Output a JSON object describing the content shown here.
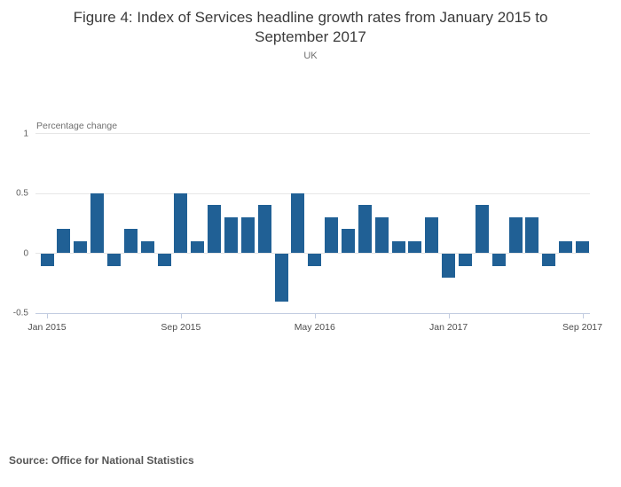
{
  "footer": {
    "source": "Source: Office for National Statistics"
  },
  "chart_data": {
    "type": "bar",
    "title": "Figure 4: Index of Services headline growth rates from January 2015 to September 2017",
    "subtitle": "UK",
    "ylabel": "Percentage change",
    "xlabel": "",
    "categories": [
      "Jan 2015",
      "Feb 2015",
      "Mar 2015",
      "Apr 2015",
      "May 2015",
      "Jun 2015",
      "Jul 2015",
      "Aug 2015",
      "Sep 2015",
      "Oct 2015",
      "Nov 2015",
      "Dec 2015",
      "Jan 2016",
      "Feb 2016",
      "Mar 2016",
      "Apr 2016",
      "May 2016",
      "Jun 2016",
      "Jul 2016",
      "Aug 2016",
      "Sep 2016",
      "Oct 2016",
      "Nov 2016",
      "Dec 2016",
      "Jan 2017",
      "Feb 2017",
      "Mar 2017",
      "Apr 2017",
      "May 2017",
      "Jun 2017",
      "Jul 2017",
      "Aug 2017",
      "Sep 2017"
    ],
    "values": [
      -0.1,
      0.2,
      0.1,
      0.5,
      -0.1,
      0.2,
      0.1,
      -0.1,
      0.5,
      0.1,
      0.4,
      0.3,
      0.3,
      0.4,
      -0.4,
      0.5,
      -0.1,
      0.3,
      0.2,
      0.4,
      0.3,
      0.1,
      0.1,
      0.3,
      -0.2,
      -0.1,
      0.4,
      -0.1,
      0.3,
      0.3,
      -0.1,
      0.1,
      0.1
    ],
    "ylim": [
      -0.5,
      1
    ],
    "y_ticks": [
      1,
      0.5,
      0,
      -0.5
    ],
    "y_tick_labels": [
      "1",
      "0.5",
      "0",
      "-0.5"
    ],
    "x_tick_indices": [
      0,
      8,
      16,
      24,
      32
    ],
    "x_tick_labels": [
      "Jan 2015",
      "Sep 2015",
      "May 2016",
      "Jan 2017",
      "Sep 2017"
    ],
    "grid": "horizontal",
    "legend": "none",
    "bar_color": "#206095"
  }
}
